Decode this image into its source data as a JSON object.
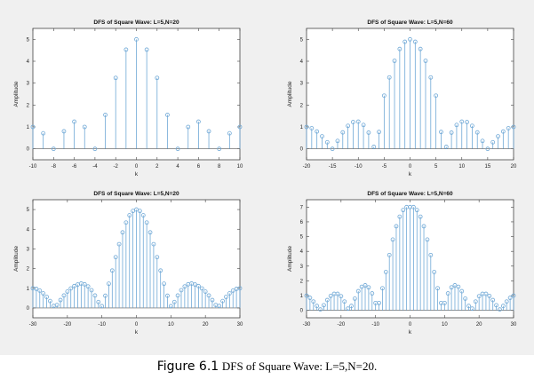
{
  "figure": {
    "background": "#f0f0f0",
    "stem_color": "#6fa8d6",
    "axes_color": "#444444"
  },
  "chart_data": [
    {
      "type": "stem",
      "title": "DFS of Square Wave: L=5,N=20",
      "xlabel": "k",
      "ylabel": "Amplitude",
      "xlim": [
        -10,
        10
      ],
      "ylim": [
        -0.5,
        5.5
      ],
      "xticks": [
        -10,
        -8,
        -6,
        -4,
        -2,
        0,
        2,
        4,
        6,
        8,
        10
      ],
      "yticks": [
        0,
        1,
        2,
        3,
        4,
        5
      ],
      "x": [
        -10,
        -9,
        -8,
        -7,
        -6,
        -5,
        -4,
        -3,
        -2,
        -1,
        0,
        1,
        2,
        3,
        4,
        5,
        6,
        7,
        8,
        9,
        10
      ],
      "y": [
        1,
        0.71,
        0,
        0.8,
        1.24,
        1,
        0,
        1.55,
        3.24,
        4.53,
        5,
        4.53,
        3.24,
        1.55,
        0,
        1,
        1.24,
        0.8,
        0,
        0.71,
        1
      ]
    },
    {
      "type": "stem",
      "title": "DFS of Square Wave: L=5,N=60",
      "xlabel": "k",
      "ylabel": "Amplitude",
      "xlim": [
        -20,
        20
      ],
      "ylim": [
        -0.5,
        5.5
      ],
      "xticks": [
        -20,
        -15,
        -10,
        -5,
        0,
        5,
        10,
        15,
        20
      ],
      "yticks": [
        0,
        1,
        2,
        3,
        4,
        5
      ],
      "x": [
        -20,
        -19,
        -18,
        -17,
        -16,
        -15,
        -14,
        -13,
        -12,
        -11,
        -10,
        -9,
        -8,
        -7,
        -6,
        -5,
        -4,
        -3,
        -2,
        -1,
        0,
        1,
        2,
        3,
        4,
        5,
        6,
        7,
        8,
        9,
        10,
        11,
        12,
        13,
        14,
        15,
        16,
        17,
        18,
        19,
        20
      ],
      "y": [
        1,
        0.94,
        0.79,
        0.57,
        0.3,
        0,
        0.36,
        0.75,
        1.05,
        1.22,
        1.24,
        1.09,
        0.74,
        0.09,
        0.77,
        2.43,
        3.26,
        4.02,
        4.56,
        4.89,
        5,
        4.89,
        4.56,
        4.02,
        3.26,
        2.43,
        0.77,
        0.09,
        0.74,
        1.09,
        1.24,
        1.22,
        1.05,
        0.75,
        0.36,
        0,
        0.3,
        0.57,
        0.79,
        0.94,
        1
      ]
    },
    {
      "type": "stem",
      "title": "DFS of Square Wave: L=5,N=20",
      "xlabel": "k",
      "ylabel": "Amplitude",
      "xlim": [
        -30,
        30
      ],
      "ylim": [
        -0.5,
        5.5
      ],
      "xticks": [
        -30,
        -20,
        -10,
        0,
        10,
        20,
        30
      ],
      "yticks": [
        0,
        1,
        2,
        3,
        4,
        5
      ],
      "x": [
        -30,
        -29,
        -28,
        -27,
        -26,
        -25,
        -24,
        -23,
        -22,
        -21,
        -20,
        -19,
        -18,
        -17,
        -16,
        -15,
        -14,
        -13,
        -12,
        -11,
        -10,
        -9,
        -8,
        -7,
        -6,
        -5,
        -4,
        -3,
        -2,
        -1,
        0,
        1,
        2,
        3,
        4,
        5,
        6,
        7,
        8,
        9,
        10,
        11,
        12,
        13,
        14,
        15,
        16,
        17,
        18,
        19,
        20,
        21,
        22,
        23,
        24,
        25,
        26,
        27,
        28,
        29,
        30
      ],
      "y": [
        1,
        0.97,
        0.88,
        0.74,
        0.56,
        0.35,
        0.1,
        0.15,
        0.4,
        0.63,
        0.83,
        0.99,
        1.11,
        1.19,
        1.24,
        1.2,
        1.09,
        0.9,
        0.63,
        0.3,
        0.09,
        0.62,
        1.23,
        1.9,
        2.58,
        3.24,
        3.84,
        4.34,
        4.71,
        4.93,
        5,
        4.93,
        4.71,
        4.34,
        3.84,
        3.24,
        2.58,
        1.9,
        1.23,
        0.62,
        0.09,
        0.3,
        0.63,
        0.9,
        1.09,
        1.2,
        1.24,
        1.19,
        1.11,
        0.99,
        0.83,
        0.63,
        0.4,
        0.15,
        0.1,
        0.35,
        0.56,
        0.74,
        0.88,
        0.97,
        1
      ]
    },
    {
      "type": "stem",
      "title": "DFS of Square Wave: L=5,N=60",
      "xlabel": "k",
      "ylabel": "Amplitude",
      "xlim": [
        -30,
        30
      ],
      "ylim": [
        -0.5,
        7.5
      ],
      "xticks": [
        -30,
        -20,
        -10,
        0,
        10,
        20,
        30
      ],
      "yticks": [
        0,
        1,
        2,
        3,
        4,
        5,
        6,
        7
      ],
      "x": [
        -30,
        -29,
        -28,
        -27,
        -26,
        -25,
        -24,
        -23,
        -22,
        -21,
        -20,
        -19,
        -18,
        -17,
        -16,
        -15,
        -14,
        -13,
        -12,
        -11,
        -10,
        -9,
        -8,
        -7,
        -6,
        -5,
        -4,
        -3,
        -2,
        -1,
        0,
        1,
        2,
        3,
        4,
        5,
        6,
        7,
        8,
        9,
        10,
        11,
        12,
        13,
        14,
        15,
        16,
        17,
        18,
        19,
        20,
        21,
        22,
        23,
        24,
        25,
        26,
        27,
        28,
        29,
        30
      ],
      "y": [
        1,
        0.85,
        0.6,
        0.3,
        0.06,
        0.35,
        0.7,
        0.98,
        1.12,
        1.12,
        0.96,
        0.6,
        0.12,
        0.3,
        0.8,
        1.3,
        1.6,
        1.7,
        1.56,
        1.15,
        0.5,
        0.5,
        1.5,
        2.6,
        3.75,
        4.8,
        5.7,
        6.35,
        6.8,
        7.0,
        7.0,
        7.0,
        6.8,
        6.35,
        5.7,
        4.8,
        3.75,
        2.6,
        1.5,
        0.5,
        0.5,
        1.15,
        1.56,
        1.7,
        1.6,
        1.3,
        0.8,
        0.3,
        0.12,
        0.6,
        0.96,
        1.12,
        1.12,
        0.98,
        0.7,
        0.35,
        0.06,
        0.3,
        0.6,
        0.85,
        1
      ]
    }
  ],
  "caption": {
    "label": "Figure 6.1",
    "text": "DFS of Square Wave: L=5,N=20."
  }
}
